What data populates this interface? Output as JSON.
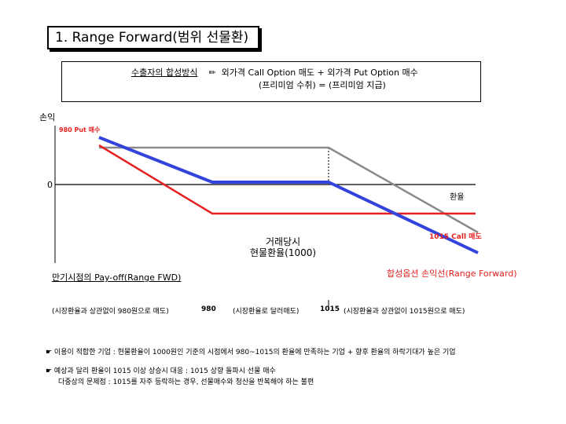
{
  "title": "1. Range Forward(범위 선물환)",
  "method": {
    "label": "수출자의 합성방식",
    "icon": "pencil-icon",
    "formula": "외가격 Call Option 매도 + 외가격 Put Option 매수",
    "formula2": "(프리미엄 수취)   =   (프리미엄 지급)"
  },
  "chart": {
    "y_label": "손익",
    "zero_label": "0",
    "x_label": "환율",
    "put_label": "980 Put 매수",
    "call_label": "1015 Call 매도",
    "spot_label_1": "거래당시",
    "spot_label_2": "현물환율(1000)",
    "payoff_title": "만기시점의 Pay-off(Range FWD)",
    "synthetic_label": "합성옵션 손익선(Range Forward)",
    "range_left": "(시장환율과 상관없이 980원으로 매도)",
    "strike_low": "980",
    "range_mid": "(시장환율로 달러매도)",
    "strike_high": "1015",
    "range_right": "(시장환율과 상관없이 1015원으로 매도)",
    "colors": {
      "put": "#e52020",
      "synthetic": "#3344dd",
      "call": "#8a8a8a"
    }
  },
  "notes": [
    "☛ 이용이 적합한 기업 :  현물환율이 1000원인 기준의 시점에서 980~1015의 환율에 만족하는 기업 + 향후 환율의 하락기대가 높은 기업",
    "☛ 예상과 달리 환율이 1015 이상 상승시 대응 : 1015 상향 돌파시 선물 매수",
    "다중상의 문제점 : 1015를 자주 등락하는 경우, 선물매수와 청산을 반복해야 하는 불편"
  ]
}
